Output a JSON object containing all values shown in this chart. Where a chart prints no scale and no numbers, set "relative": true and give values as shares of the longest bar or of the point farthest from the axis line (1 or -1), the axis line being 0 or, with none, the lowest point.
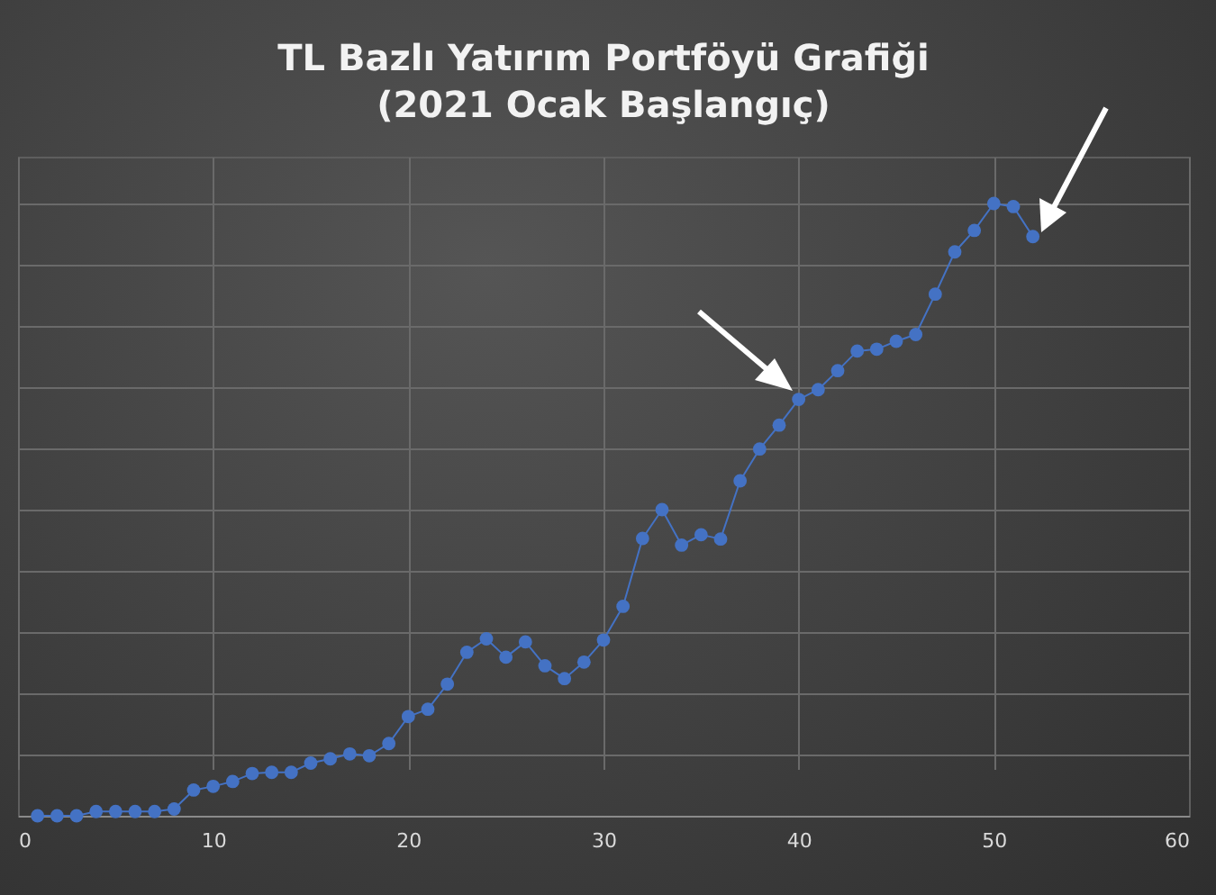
{
  "chart_data": {
    "type": "line",
    "title": "TL Bazlı Yatırım Portföyü Grafiği",
    "subtitle": "(2021 Ocak Başlangıç)",
    "x": [
      1,
      2,
      3,
      4,
      5,
      6,
      7,
      8,
      9,
      10,
      11,
      12,
      13,
      14,
      15,
      16,
      17,
      18,
      19,
      20,
      21,
      22,
      23,
      24,
      25,
      26,
      27,
      28,
      29,
      30,
      31,
      32,
      33,
      34,
      35,
      36,
      37,
      38,
      39,
      40,
      41,
      42,
      43,
      44,
      45,
      46,
      47,
      48,
      49,
      50,
      51,
      52
    ],
    "series": [
      {
        "color": "#4472c4",
        "values": [
          0,
          0,
          0,
          0.007,
          0.007,
          0.007,
          0.007,
          0.011,
          0.042,
          0.048,
          0.056,
          0.069,
          0.071,
          0.071,
          0.086,
          0.093,
          0.101,
          0.098,
          0.118,
          0.162,
          0.174,
          0.215,
          0.267,
          0.289,
          0.259,
          0.284,
          0.245,
          0.224,
          0.251,
          0.287,
          0.342,
          0.453,
          0.5,
          0.442,
          0.459,
          0.452,
          0.547,
          0.599,
          0.638,
          0.68,
          0.696,
          0.727,
          0.759,
          0.762,
          0.775,
          0.786,
          0.852,
          0.921,
          0.956,
          1,
          0.995,
          0.946
        ]
      }
    ],
    "relative": true,
    "xlim": [
      0,
      60
    ],
    "xticks": [
      0,
      10,
      20,
      30,
      40,
      50,
      60
    ],
    "grid": true,
    "marker": "circle",
    "line_style": "solid"
  }
}
